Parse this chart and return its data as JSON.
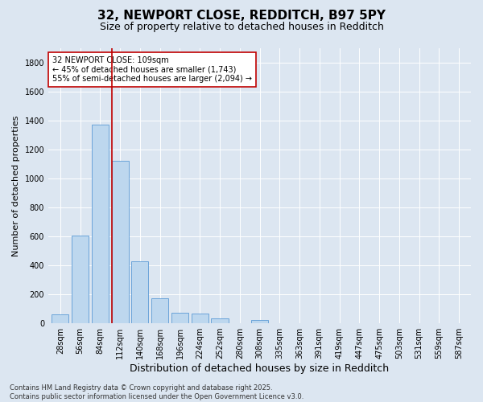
{
  "title1": "32, NEWPORT CLOSE, REDDITCH, B97 5PY",
  "title2": "Size of property relative to detached houses in Redditch",
  "xlabel": "Distribution of detached houses by size in Redditch",
  "ylabel": "Number of detached properties",
  "categories": [
    "28sqm",
    "56sqm",
    "84sqm",
    "112sqm",
    "140sqm",
    "168sqm",
    "196sqm",
    "224sqm",
    "252sqm",
    "280sqm",
    "308sqm",
    "335sqm",
    "363sqm",
    "391sqm",
    "419sqm",
    "447sqm",
    "475sqm",
    "503sqm",
    "531sqm",
    "559sqm",
    "587sqm"
  ],
  "values": [
    60,
    605,
    1370,
    1125,
    430,
    170,
    70,
    65,
    35,
    0,
    20,
    0,
    0,
    0,
    0,
    0,
    0,
    0,
    0,
    0,
    0
  ],
  "bar_color": "#bdd7ee",
  "bar_edge_color": "#5b9bd5",
  "vline_color": "#c00000",
  "vline_x_index": 2.57,
  "annotation_text": "32 NEWPORT CLOSE: 109sqm\n← 45% of detached houses are smaller (1,743)\n55% of semi-detached houses are larger (2,094) →",
  "annotation_box_facecolor": "#ffffff",
  "annotation_box_edgecolor": "#c00000",
  "ylim": [
    0,
    1900
  ],
  "yticks": [
    0,
    200,
    400,
    600,
    800,
    1000,
    1200,
    1400,
    1600,
    1800
  ],
  "footnote": "Contains HM Land Registry data © Crown copyright and database right 2025.\nContains public sector information licensed under the Open Government Licence v3.0.",
  "bg_color": "#dce6f1",
  "grid_color": "#ffffff",
  "title1_fontsize": 11,
  "title2_fontsize": 9,
  "xlabel_fontsize": 9,
  "ylabel_fontsize": 8,
  "tick_fontsize": 7,
  "annot_fontsize": 7,
  "footnote_fontsize": 6
}
